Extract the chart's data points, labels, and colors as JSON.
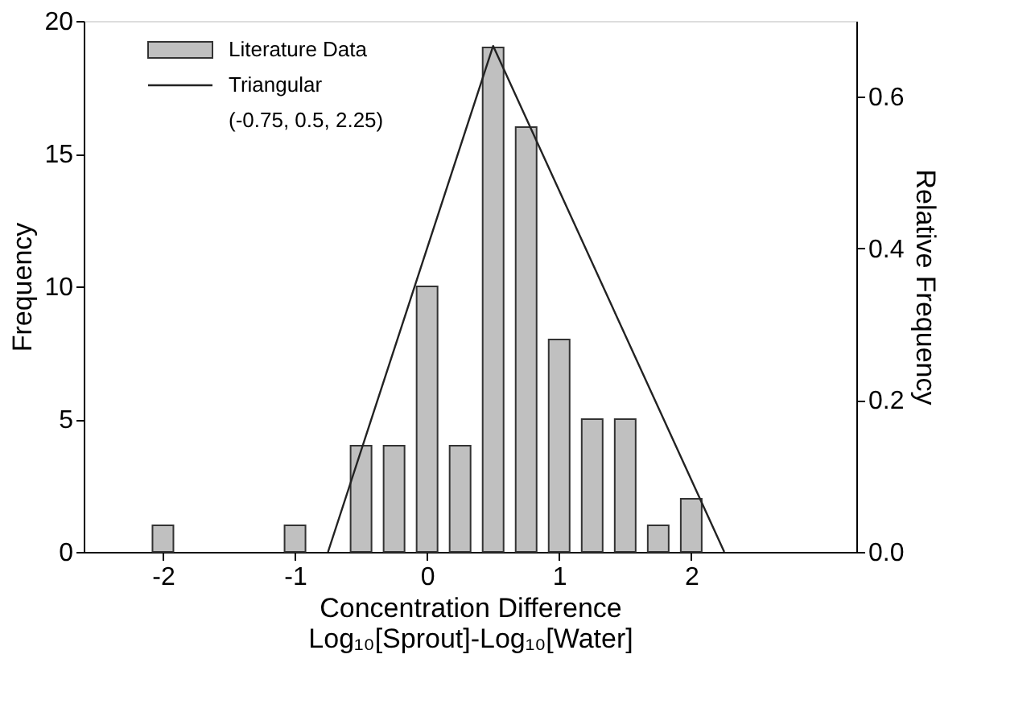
{
  "chart_data": {
    "type": "bar",
    "xlabel": "Concentration Difference\nLog₁₀[Sprout]-Log₁₀[Water]",
    "ylabel": "Frequency",
    "y2label": "Relative Frequency",
    "series": [
      {
        "name": "Literature Data",
        "color": "#c0c0c0",
        "x": [
          -2,
          -1,
          -0.5,
          -0.25,
          0,
          0.25,
          0.5,
          0.75,
          1,
          1.25,
          1.5,
          1.75,
          2
        ],
        "values": [
          1,
          1,
          4,
          4,
          10,
          4,
          19,
          16,
          8,
          5,
          5,
          1,
          2
        ]
      },
      {
        "name": "Triangular",
        "type": "line",
        "axis": "y2",
        "color": "#222222",
        "x": [
          -0.75,
          0.5,
          2.25
        ],
        "values": [
          0,
          0.667,
          0
        ]
      }
    ],
    "annotations": [
      "(-0.75, 0.5,  2.25)"
    ],
    "xlim": [
      -2.6,
      3.25
    ],
    "xticks": [
      -2,
      -1,
      0,
      1,
      2
    ],
    "ylim": [
      0,
      20
    ],
    "yticks": [
      0,
      5,
      10,
      15,
      20
    ],
    "y2lim": [
      0,
      0.7
    ],
    "y2ticks": [
      {
        "value": 0,
        "label": "0.0"
      },
      {
        "value": 0.2,
        "label": "0.2"
      },
      {
        "value": 0.4,
        "label": "0.4"
      },
      {
        "value": 0.6,
        "label": "0.6"
      }
    ],
    "legend": "top left",
    "grid": false
  }
}
